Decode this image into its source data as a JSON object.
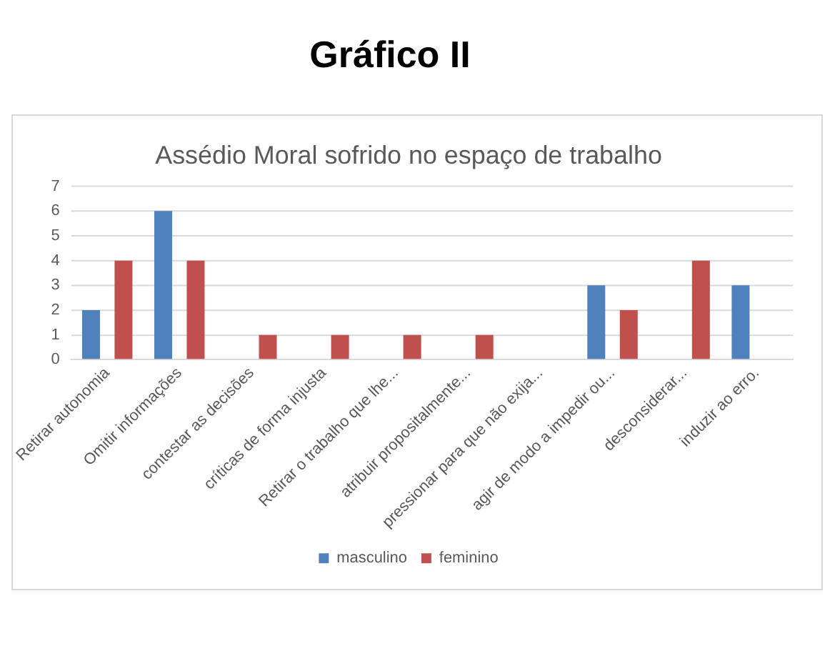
{
  "chart_data": {
    "type": "bar",
    "title": "Gráfico II",
    "subtitle": "Assédio Moral sofrido no espaço de trabalho",
    "categories": [
      "Retirar autonomia",
      "Omitir informações",
      "contestar as decisões",
      "críticas de forma injusta",
      "Retirar o trabalho que lhe...",
      "atribuir propositalmente...",
      "pressionar para que não exija...",
      "agir de modo a impedir ou...",
      "desconsiderar...",
      "induzir ao erro."
    ],
    "series": [
      {
        "name": "masculino",
        "color": "#4f81bd",
        "values": [
          2,
          6,
          0,
          0,
          0,
          0,
          0,
          3,
          0,
          3
        ]
      },
      {
        "name": "feminino",
        "color": "#c0504d",
        "values": [
          4,
          4,
          1,
          1,
          1,
          1,
          0,
          2,
          4,
          0
        ]
      }
    ],
    "ylim": [
      0,
      7
    ],
    "yticks": [
      0,
      1,
      2,
      3,
      4,
      5,
      6,
      7
    ],
    "grid": "y",
    "legend": "bottom"
  }
}
